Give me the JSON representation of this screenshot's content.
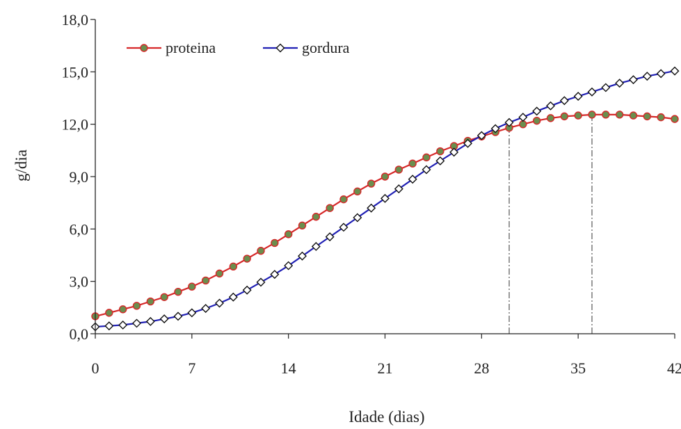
{
  "chart_data": {
    "type": "line",
    "title": "",
    "xlabel": "Idade (dias)",
    "ylabel": "g/dia",
    "xlim": [
      0,
      42
    ],
    "ylim": [
      0,
      18
    ],
    "xticks": [
      0,
      7,
      14,
      21,
      28,
      35,
      42
    ],
    "xtick_labels": [
      "0",
      "7",
      "14",
      "21",
      "28",
      "35",
      "42"
    ],
    "yticks": [
      0,
      3,
      6,
      9,
      12,
      15,
      18
    ],
    "ytick_labels": [
      "0,0",
      "3,0",
      "6,0",
      "9,0",
      "12,0",
      "15,0",
      "18,0"
    ],
    "grid": false,
    "legend_position": "top-left",
    "reference_lines_x": [
      30,
      36
    ],
    "x": [
      0,
      1,
      2,
      3,
      4,
      5,
      6,
      7,
      8,
      9,
      10,
      11,
      12,
      13,
      14,
      15,
      16,
      17,
      18,
      19,
      20,
      21,
      22,
      23,
      24,
      25,
      26,
      27,
      28,
      29,
      30,
      31,
      32,
      33,
      34,
      35,
      36,
      37,
      38,
      39,
      40,
      41,
      42
    ],
    "series": [
      {
        "name": "proteina",
        "color": "#d62728",
        "marker": "circle",
        "marker_fill": "#6b8e4e",
        "values": [
          1.0,
          1.2,
          1.4,
          1.6,
          1.85,
          2.1,
          2.4,
          2.7,
          3.05,
          3.45,
          3.85,
          4.3,
          4.75,
          5.2,
          5.7,
          6.2,
          6.7,
          7.2,
          7.7,
          8.15,
          8.6,
          9.0,
          9.4,
          9.75,
          10.1,
          10.45,
          10.75,
          11.05,
          11.3,
          11.55,
          11.8,
          12.0,
          12.2,
          12.35,
          12.45,
          12.5,
          12.55,
          12.55,
          12.55,
          12.5,
          12.45,
          12.4,
          12.3
        ]
      },
      {
        "name": "gordura",
        "color": "#1f1fb4",
        "marker": "diamond",
        "marker_fill": "#ffffff",
        "values": [
          0.4,
          0.45,
          0.5,
          0.6,
          0.7,
          0.85,
          1.0,
          1.2,
          1.45,
          1.75,
          2.1,
          2.5,
          2.95,
          3.4,
          3.9,
          4.45,
          5.0,
          5.55,
          6.1,
          6.65,
          7.2,
          7.75,
          8.3,
          8.85,
          9.4,
          9.9,
          10.4,
          10.9,
          11.35,
          11.75,
          12.1,
          12.4,
          12.75,
          13.05,
          13.35,
          13.6,
          13.85,
          14.1,
          14.35,
          14.55,
          14.75,
          14.9,
          15.05
        ]
      }
    ]
  }
}
